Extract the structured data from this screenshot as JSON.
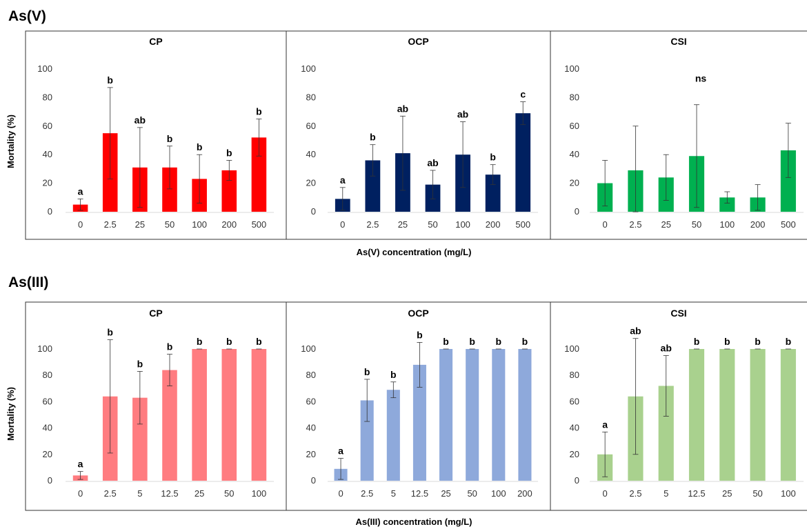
{
  "chart_data": [
    {
      "section": "As(V)",
      "type": "bar",
      "ylabel": "Mortality (%)",
      "xlabel": "As(V) concentration (mg/L)",
      "ylim": [
        0,
        100
      ],
      "yticks": [
        0,
        20,
        40,
        60,
        80,
        100
      ],
      "panels": [
        {
          "title": "CP",
          "color": "#ff0000",
          "categories": [
            "0",
            "2.5",
            "25",
            "50",
            "100",
            "200",
            "500"
          ],
          "values": [
            5,
            55,
            31,
            31,
            23,
            29,
            52
          ],
          "errors": [
            4,
            32,
            28,
            15,
            17,
            7,
            13
          ],
          "letters": [
            "a",
            "b",
            "ab",
            "b",
            "b",
            "b",
            "b"
          ]
        },
        {
          "title": "OCP",
          "color": "#002060",
          "categories": [
            "0",
            "2.5",
            "25",
            "50",
            "100",
            "200",
            "500"
          ],
          "values": [
            9,
            36,
            41,
            19,
            40,
            26,
            69
          ],
          "errors": [
            8,
            11,
            26,
            10,
            23,
            7,
            8
          ],
          "letters": [
            "a",
            "b",
            "ab",
            "ab",
            "ab",
            "b",
            "c"
          ]
        },
        {
          "title": "CSI",
          "color": "#00b050",
          "categories": [
            "0",
            "2.5",
            "25",
            "50",
            "100",
            "200",
            "500"
          ],
          "values": [
            20,
            29,
            24,
            39,
            10,
            10,
            43
          ],
          "errors": [
            16,
            31,
            16,
            36,
            4,
            9,
            19
          ],
          "letters": [],
          "note": "ns"
        }
      ]
    },
    {
      "section": "As(III)",
      "type": "bar",
      "ylabel": "Mortality (%)",
      "xlabel": "As(III) concentration (mg/L)",
      "ylim": [
        0,
        100
      ],
      "yticks": [
        0,
        20,
        40,
        60,
        80,
        100
      ],
      "panels": [
        {
          "title": "CP",
          "color": "#ff7c80",
          "categories": [
            "0",
            "2.5",
            "5",
            "12.5",
            "25",
            "50",
            "100"
          ],
          "values": [
            4,
            64,
            63,
            84,
            100,
            100,
            100
          ],
          "errors": [
            3,
            43,
            20,
            12,
            0,
            0,
            0
          ],
          "letters": [
            "a",
            "b",
            "b",
            "b",
            "b",
            "b",
            "b"
          ]
        },
        {
          "title": "OCP",
          "color": "#8ea9db",
          "categories": [
            "0",
            "2.5",
            "5",
            "12.5",
            "25",
            "50",
            "100",
            "200"
          ],
          "values": [
            9,
            61,
            69,
            88,
            100,
            100,
            100,
            100
          ],
          "errors": [
            8,
            16,
            6,
            17,
            0,
            0,
            0,
            0
          ],
          "letters": [
            "a",
            "b",
            "b",
            "b",
            "b",
            "b",
            "b",
            "b"
          ]
        },
        {
          "title": "CSI",
          "color": "#a9d18e",
          "categories": [
            "0",
            "2.5",
            "5",
            "12.5",
            "25",
            "50",
            "100"
          ],
          "values": [
            20,
            64,
            72,
            100,
            100,
            100,
            100
          ],
          "errors": [
            17,
            44,
            23,
            0,
            0,
            0,
            0
          ],
          "letters": [
            "a",
            "ab",
            "ab",
            "b",
            "b",
            "b",
            "b"
          ]
        }
      ]
    }
  ]
}
